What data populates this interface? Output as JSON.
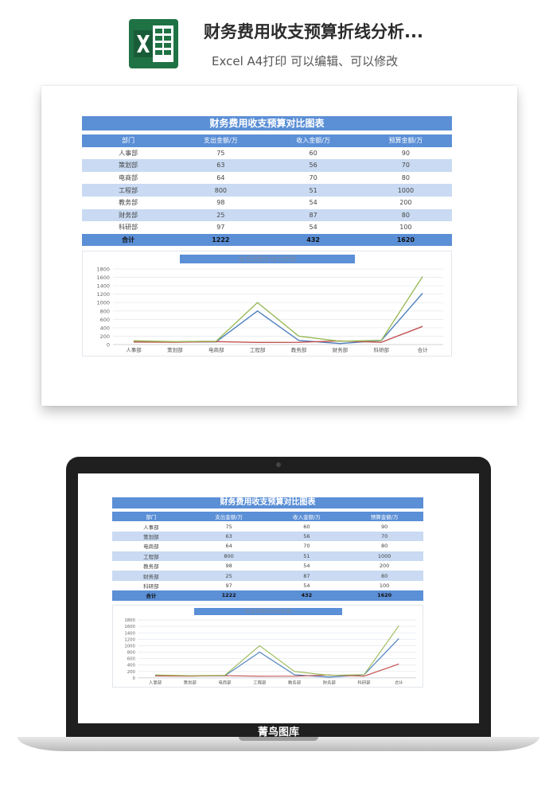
{
  "header": {
    "title": "财务费用收支预算折线分析...",
    "subtitle": "Excel A4打印 可以编辑、可以修改",
    "icon": "excel-icon",
    "icon_color": "#1f7244"
  },
  "table": {
    "title": "财务费用收支预算对比图表",
    "columns": [
      "部门",
      "支出金额/万",
      "收入金额/万",
      "预算金额/万"
    ],
    "rows": [
      [
        "人事部",
        "75",
        "60",
        "90"
      ],
      [
        "策划部",
        "63",
        "56",
        "70"
      ],
      [
        "电商部",
        "64",
        "70",
        "80"
      ],
      [
        "工程部",
        "800",
        "51",
        "1000"
      ],
      [
        "教务部",
        "98",
        "54",
        "200"
      ],
      [
        "财务部",
        "25",
        "87",
        "80"
      ],
      [
        "科研部",
        "97",
        "54",
        "100"
      ]
    ],
    "total": [
      "合计",
      "1222",
      "432",
      "1620"
    ],
    "header_color": "#5b8fd6",
    "stripe_color": "#c9daf2"
  },
  "chart_data": {
    "type": "line",
    "title": "收支预算折线分析图",
    "categories": [
      "人事部",
      "策划部",
      "电商部",
      "工程部",
      "教务部",
      "财务部",
      "科研部",
      "合计"
    ],
    "series": [
      {
        "values": [
          75,
          63,
          64,
          800,
          98,
          25,
          97,
          1222
        ],
        "color": "#4f81bd"
      },
      {
        "values": [
          60,
          56,
          70,
          51,
          54,
          87,
          54,
          432
        ],
        "color": "#c0504d"
      },
      {
        "values": [
          90,
          70,
          80,
          1000,
          200,
          80,
          100,
          1620
        ],
        "color": "#9bbb59"
      }
    ],
    "yticks": [
      0,
      200,
      400,
      600,
      800,
      1000,
      1200,
      1400,
      1600,
      1800
    ],
    "ylim": [
      0,
      1800
    ],
    "grid": true
  },
  "watermark": "菁鸟图库"
}
